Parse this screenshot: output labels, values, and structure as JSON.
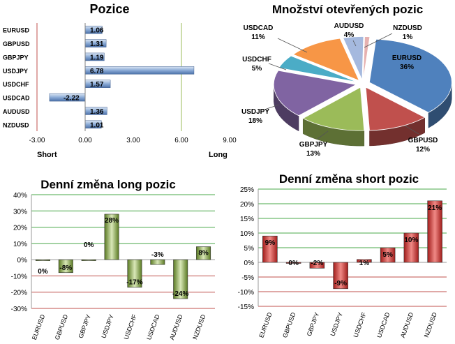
{
  "chart_data": [
    {
      "type": "bar",
      "orientation": "horizontal",
      "title": "Pozice",
      "categories": [
        "EURUSD",
        "GBPUSD",
        "GBPJPY",
        "USDJPY",
        "USDCHF",
        "USDCAD",
        "AUDUSD",
        "NZDUSD"
      ],
      "values": [
        1.06,
        1.31,
        1.19,
        6.78,
        1.57,
        -2.22,
        1.36,
        1.01
      ],
      "value_labels": [
        "1.06",
        "1.31",
        "1.19",
        "6.78",
        "1.57",
        "-2.22",
        "1.36",
        "1.01"
      ],
      "x_ticks": [
        -3,
        0,
        3,
        6,
        9
      ],
      "x_tick_labels": [
        "-3.00",
        "0.00",
        "3.00",
        "6.00",
        "9.00"
      ],
      "xlim": [
        -3,
        9
      ],
      "left_label": "Short",
      "right_label": "Long",
      "colors": {
        "bar": "#6a8fc4",
        "short_line": "#c0504d",
        "long_line": "#9bbb59"
      }
    },
    {
      "type": "pie",
      "title": "Množství otevřených pozic",
      "slices": [
        {
          "label": "EURUSD",
          "value": 36,
          "pct_label": "36%",
          "color": "#4f81bd"
        },
        {
          "label": "GBPUSD",
          "value": 12,
          "pct_label": "12%",
          "color": "#c0504d"
        },
        {
          "label": "GBPJPY",
          "value": 13,
          "pct_label": "13%",
          "color": "#9bbb59"
        },
        {
          "label": "USDJPY",
          "value": 18,
          "pct_label": "18%",
          "color": "#8064a2"
        },
        {
          "label": "USDCHF",
          "value": 5,
          "pct_label": "5%",
          "color": "#4bacc6"
        },
        {
          "label": "USDCAD",
          "value": 11,
          "pct_label": "11%",
          "color": "#f79646"
        },
        {
          "label": "AUDUSD",
          "value": 4,
          "pct_label": "4%",
          "color": "#a5b9de"
        },
        {
          "label": "NZDUSD",
          "value": 1,
          "pct_label": "1%",
          "color": "#e6b1b0"
        }
      ]
    },
    {
      "type": "bar",
      "title": "Denní změna long pozic",
      "categories": [
        "EURUSD",
        "GBPUSD",
        "GBPJPY",
        "USDJPY",
        "USDCHF",
        "USDCAD",
        "AUDUSD",
        "NZDUSD"
      ],
      "values": [
        0,
        -8,
        0,
        28,
        -17,
        -3,
        -24,
        8
      ],
      "value_labels": [
        "0%",
        "-8%",
        "0%",
        "28%",
        "-17%",
        "-3%",
        "-24%",
        "8%"
      ],
      "y_ticks": [
        -30,
        -20,
        -10,
        0,
        10,
        20,
        30,
        40
      ],
      "y_tick_labels": [
        "-30%",
        "-20%",
        "-10%",
        "0%",
        "10%",
        "20%",
        "30%",
        "40%"
      ],
      "ylim": [
        -30,
        40
      ],
      "colors": {
        "bar": "#77933c",
        "pos_grid": "#4aa84a",
        "neg_grid": "#c0504d"
      }
    },
    {
      "type": "bar",
      "title": "Denní změna short pozic",
      "categories": [
        "EURUSD",
        "GBPUSD",
        "GBPJPY",
        "USDJPY",
        "USDCHF",
        "USDCAD",
        "AUDUSD",
        "NZDUSD"
      ],
      "values": [
        9,
        0,
        -2,
        -9,
        1,
        5,
        10,
        21
      ],
      "value_labels": [
        "9%",
        "0%",
        "-2%",
        "-9%",
        "1%",
        "5%",
        "10%",
        "21%"
      ],
      "y_ticks": [
        -15,
        -10,
        -5,
        0,
        5,
        10,
        15,
        20,
        25
      ],
      "y_tick_labels": [
        "-15%",
        "-10%",
        "-5%",
        "0%",
        "5%",
        "10%",
        "15%",
        "20%",
        "25%"
      ],
      "ylim": [
        -15,
        25
      ],
      "colors": {
        "bar": "#c0302d",
        "pos_grid": "#4aa84a",
        "neg_grid": "#c0504d"
      }
    }
  ]
}
